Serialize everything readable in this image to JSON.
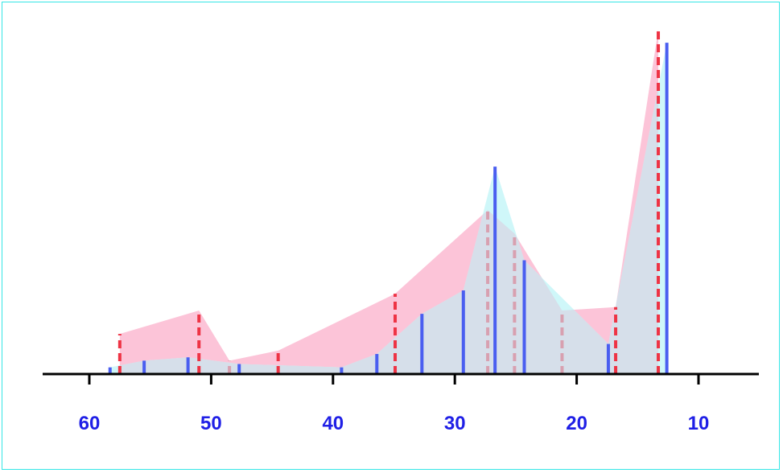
{
  "chart_data": {
    "type": "area",
    "title": "",
    "xlabel": "",
    "ylabel": "",
    "x_reversed": true,
    "xlim": [
      64,
      4
    ],
    "ylim": [
      0,
      100
    ],
    "x_ticks": [
      60,
      50,
      40,
      30,
      20,
      10
    ],
    "grid": false,
    "legend": "none",
    "colors": {
      "axis": "#000000",
      "tick_label": "#1f1fe6",
      "series_a_fill": "#fcc4d8",
      "series_a_line": "#ee3344",
      "series_a_dash_alt": "#d8a0b0",
      "series_b_fill": "#cff7f9",
      "series_b_line": "#4a5ef0",
      "overlap_fill": "#d6dfea"
    },
    "series": [
      {
        "style": "red-dashed-sticks",
        "points": [
          {
            "x": 57.5,
            "y": 12
          },
          {
            "x": 51.0,
            "y": 19
          },
          {
            "x": 48.5,
            "y": 4
          },
          {
            "x": 44.5,
            "y": 7
          },
          {
            "x": 34.9,
            "y": 24
          },
          {
            "x": 27.3,
            "y": 49
          },
          {
            "x": 25.1,
            "y": 42
          },
          {
            "x": 21.2,
            "y": 19
          },
          {
            "x": 16.8,
            "y": 20
          },
          {
            "x": 13.3,
            "y": 103
          }
        ]
      },
      {
        "style": "blue-solid-sticks",
        "points": [
          {
            "x": 58.3,
            "y": 2
          },
          {
            "x": 55.5,
            "y": 4
          },
          {
            "x": 51.9,
            "y": 5
          },
          {
            "x": 47.7,
            "y": 3
          },
          {
            "x": 39.3,
            "y": 2
          },
          {
            "x": 36.4,
            "y": 6
          },
          {
            "x": 32.7,
            "y": 18
          },
          {
            "x": 29.3,
            "y": 25
          },
          {
            "x": 26.7,
            "y": 62
          },
          {
            "x": 24.3,
            "y": 34
          },
          {
            "x": 17.4,
            "y": 9
          },
          {
            "x": 12.6,
            "y": 99
          }
        ]
      }
    ]
  }
}
